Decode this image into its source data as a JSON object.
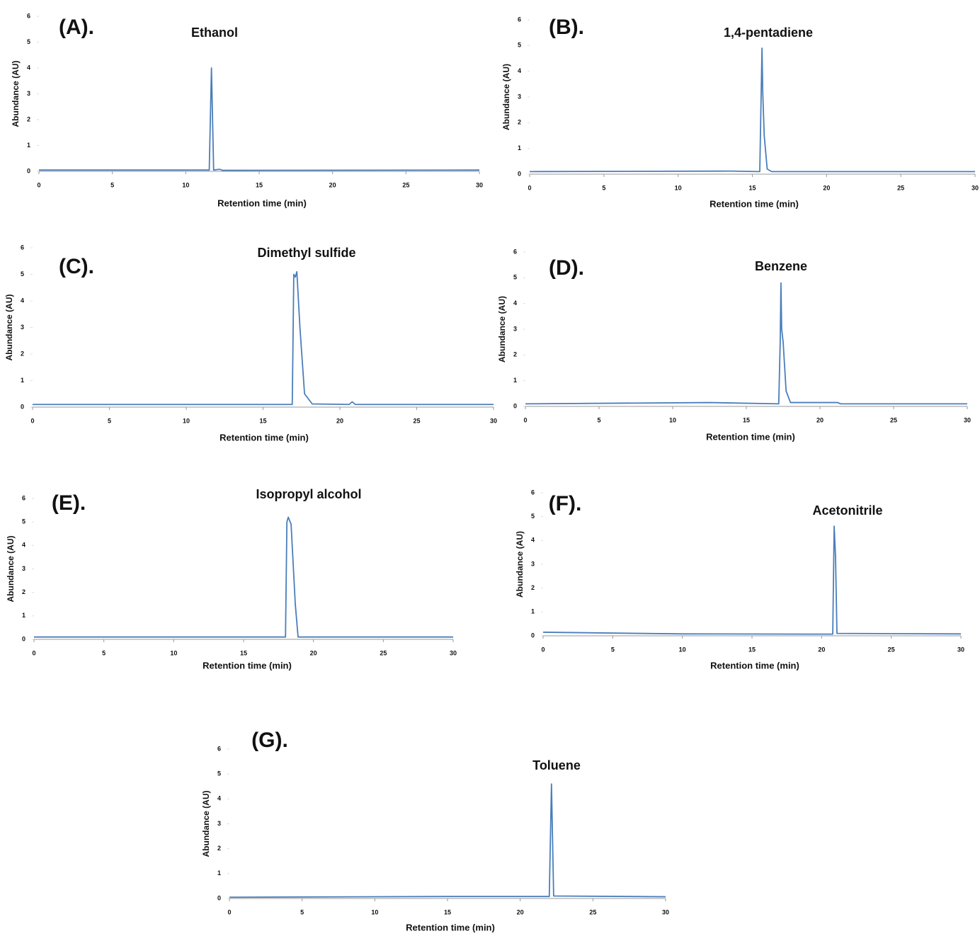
{
  "chart_data": [
    {
      "type": "line",
      "panel_label": "(A).",
      "title": "Ethanol",
      "x_label": "Retention time (min)",
      "y_label": "Abundance (AU)",
      "xlim": [
        0,
        30
      ],
      "ylim": [
        0,
        6
      ],
      "xticks": [
        0,
        5,
        10,
        15,
        20,
        25,
        30
      ],
      "yticks": [
        0,
        1,
        2,
        3,
        4,
        5,
        6
      ],
      "series": [
        {
          "color": "#4a7ebb",
          "x": [
            0,
            11.6,
            11.75,
            11.9,
            12.3,
            12.5,
            30
          ],
          "values": [
            0.05,
            0.05,
            4.0,
            0.05,
            0.08,
            0.04,
            0.05
          ]
        }
      ]
    },
    {
      "type": "line",
      "panel_label": "(B).",
      "title": "1,4-pentadiene",
      "x_label": "Retention time (min)",
      "y_label": "Abundance (AU)",
      "xlim": [
        0,
        30
      ],
      "ylim": [
        0,
        6
      ],
      "xticks": [
        0,
        5,
        10,
        15,
        20,
        25,
        30
      ],
      "yticks": [
        0,
        1,
        2,
        3,
        4,
        5,
        6
      ],
      "series": [
        {
          "color": "#4a7ebb",
          "x": [
            0,
            13.5,
            15.5,
            15.65,
            15.7,
            15.8,
            16,
            16.3,
            30
          ],
          "values": [
            0.1,
            0.12,
            0.1,
            4.9,
            3.2,
            1.5,
            0.2,
            0.1,
            0.1
          ]
        }
      ]
    },
    {
      "type": "line",
      "panel_label": "(C).",
      "title": "Dimethyl sulfide",
      "x_label": "Retention time (min)",
      "y_label": "Abundance (AU)",
      "xlim": [
        0,
        30
      ],
      "ylim": [
        0,
        6
      ],
      "xticks": [
        0,
        5,
        10,
        15,
        20,
        25,
        30
      ],
      "yticks": [
        0,
        1,
        2,
        3,
        4,
        5,
        6
      ],
      "series": [
        {
          "color": "#4a7ebb",
          "x": [
            0,
            16.9,
            17.0,
            17.1,
            17.2,
            17.4,
            17.7,
            18.2,
            20.6,
            20.8,
            21.0,
            30
          ],
          "values": [
            0.1,
            0.1,
            5.0,
            4.9,
            5.1,
            3.0,
            0.5,
            0.12,
            0.1,
            0.2,
            0.1,
            0.1
          ]
        }
      ]
    },
    {
      "type": "line",
      "panel_label": "(D).",
      "title": "Benzene",
      "x_label": "Retention time (min)",
      "y_label": "Abundance (AU)",
      "xlim": [
        0,
        30
      ],
      "ylim": [
        0,
        6
      ],
      "xticks": [
        0,
        5,
        10,
        15,
        20,
        25,
        30
      ],
      "yticks": [
        0,
        1,
        2,
        3,
        4,
        5,
        6
      ],
      "series": [
        {
          "color": "#4a7ebb",
          "x": [
            0,
            12.5,
            17.2,
            17.3,
            17.35,
            17.4,
            17.5,
            17.7,
            18,
            21.2,
            21.4,
            30
          ],
          "values": [
            0.1,
            0.15,
            0.1,
            2.5,
            4.8,
            3.0,
            2.5,
            0.6,
            0.15,
            0.15,
            0.1,
            0.1
          ]
        }
      ]
    },
    {
      "type": "line",
      "panel_label": "(E).",
      "title": "Isopropyl alcohol",
      "x_label": "Retention time (min)",
      "y_label": "Abundance (AU)",
      "xlim": [
        0,
        30
      ],
      "ylim": [
        0,
        6
      ],
      "xticks": [
        0,
        5,
        10,
        15,
        20,
        25,
        30
      ],
      "yticks": [
        0,
        1,
        2,
        3,
        4,
        5,
        6
      ],
      "series": [
        {
          "color": "#4a7ebb",
          "x": [
            0,
            18.0,
            18.1,
            18.2,
            18.4,
            18.7,
            18.9,
            30
          ],
          "values": [
            0.1,
            0.1,
            5.0,
            5.2,
            4.9,
            1.5,
            0.1,
            0.1
          ]
        }
      ]
    },
    {
      "type": "line",
      "panel_label": "(F).",
      "title": "Acetonitrile",
      "x_label": "Retention time (min)",
      "y_label": "Abundance (AU)",
      "xlim": [
        0,
        30
      ],
      "ylim": [
        0,
        6
      ],
      "xticks": [
        0,
        5,
        10,
        15,
        20,
        25,
        30
      ],
      "yticks": [
        0,
        1,
        2,
        3,
        4,
        5,
        6
      ],
      "series": [
        {
          "color": "#4a7ebb",
          "x": [
            0,
            10,
            20.8,
            20.9,
            21.0,
            21.1,
            30
          ],
          "values": [
            0.15,
            0.08,
            0.07,
            4.6,
            3.3,
            0.1,
            0.08
          ]
        }
      ]
    },
    {
      "type": "line",
      "panel_label": "(G).",
      "title": "Toluene",
      "x_label": "Retention time (min)",
      "y_label": "Abundance (AU)",
      "xlim": [
        0,
        30
      ],
      "ylim": [
        0,
        6
      ],
      "xticks": [
        0,
        5,
        10,
        15,
        20,
        25,
        30
      ],
      "yticks": [
        0,
        1,
        2,
        3,
        4,
        5,
        6
      ],
      "series": [
        {
          "color": "#4a7ebb",
          "x": [
            0,
            15,
            22.0,
            22.15,
            22.3,
            30
          ],
          "values": [
            0.05,
            0.08,
            0.08,
            4.6,
            0.1,
            0.07
          ]
        }
      ]
    }
  ]
}
